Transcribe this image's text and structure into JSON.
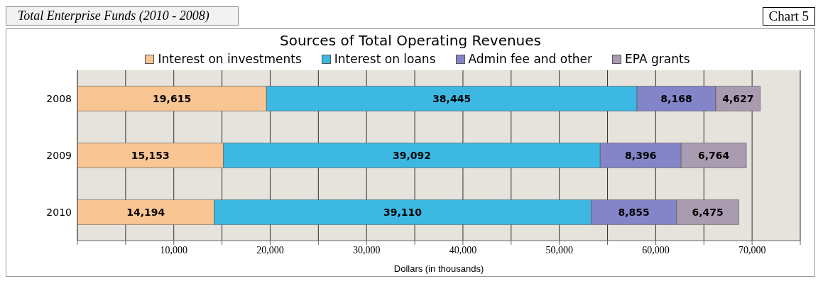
{
  "chart_data": {
    "type": "bar",
    "orientation": "horizontal",
    "stacked": true,
    "title": "Sources of Total Operating Revenues",
    "xlabel": "Dollars (in thousands)",
    "annotations": [
      "Total Enterprise Funds (2010 - 2008)",
      "Chart 5"
    ],
    "categories": [
      "2008",
      "2009",
      "2010"
    ],
    "series": [
      {
        "name": "Interest on investments",
        "color": "#f9c592",
        "values": [
          19615,
          15153,
          14194
        ],
        "value_labels": [
          "19,615",
          "15,153",
          "14,194"
        ]
      },
      {
        "name": "Interest on loans",
        "color": "#3db8e3",
        "values": [
          38445,
          39092,
          39110
        ],
        "value_labels": [
          "38,445",
          "39,092",
          "39,110"
        ]
      },
      {
        "name": "Admin fee and other",
        "color": "#8484c8",
        "values": [
          8168,
          8396,
          8855
        ],
        "value_labels": [
          "8,168",
          "8,396",
          "8,855"
        ]
      },
      {
        "name": "EPA grants",
        "color": "#a99bb0",
        "values": [
          4627,
          6764,
          6475
        ],
        "value_labels": [
          "4,627",
          "6,764",
          "6,475"
        ]
      }
    ],
    "xlim": [
      0,
      75000
    ],
    "xticks": [
      {
        "value": 0,
        "label": null
      },
      {
        "value": 5000,
        "label": null
      },
      {
        "value": 10000,
        "label": "10,000"
      },
      {
        "value": 15000,
        "label": null
      },
      {
        "value": 20000,
        "label": "20,000"
      },
      {
        "value": 25000,
        "label": null
      },
      {
        "value": 30000,
        "label": "30,000"
      },
      {
        "value": 35000,
        "label": null
      },
      {
        "value": 40000,
        "label": "40,000"
      },
      {
        "value": 45000,
        "label": null
      },
      {
        "value": 50000,
        "label": "50,000"
      },
      {
        "value": 55000,
        "label": null
      },
      {
        "value": 60000,
        "label": "60,000"
      },
      {
        "value": 65000,
        "label": null
      },
      {
        "value": 70000,
        "label": "70,000"
      },
      {
        "value": 75000,
        "label": null
      }
    ],
    "grid": "x",
    "legend": "top"
  }
}
